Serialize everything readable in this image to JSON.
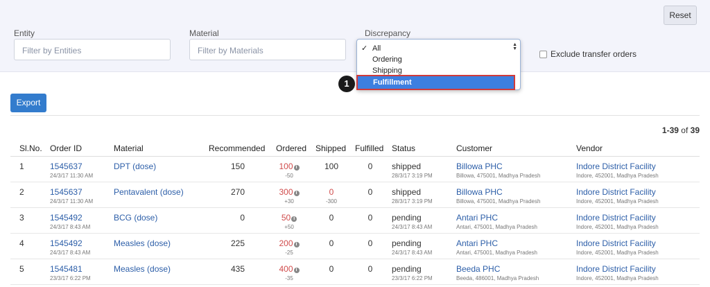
{
  "filters": {
    "reset_label": "Reset",
    "entity_label": "Entity",
    "entity_placeholder": "Filter by Entities",
    "material_label": "Material",
    "material_placeholder": "Filter by Materials",
    "discrepancy_label": "Discrepancy",
    "discrepancy_options": [
      "All",
      "Ordering",
      "Shipping",
      "Fulfillment"
    ],
    "discrepancy_checked": "All",
    "discrepancy_highlighted": "Fulfillment",
    "exclude_label": "Exclude transfer orders"
  },
  "step_marker": "1",
  "export_label": "Export",
  "pager": {
    "range": "1-39",
    "of": "of",
    "total": "39"
  },
  "table": {
    "headers": [
      "Sl.No.",
      "Order ID",
      "Material",
      "Recommended",
      "Ordered",
      "Shipped",
      "Fulfilled",
      "Status",
      "Customer",
      "Vendor"
    ],
    "rows": [
      {
        "sl": "1",
        "order_id": "1545637",
        "order_date": "24/3/17 11:30 AM",
        "material": "DPT (dose)",
        "recommended": "150",
        "ordered": "100",
        "ordered_diff": "-50",
        "shipped": "100",
        "shipped_diff": "",
        "fulfilled": "0",
        "status": "shipped",
        "status_date": "28/3/17 3:19 PM",
        "customer": "Billowa PHC",
        "customer_addr": "Billowa, 475001, Madhya Pradesh",
        "vendor": "Indore District Facility",
        "vendor_addr": "Indore, 452001, Madhya Pradesh"
      },
      {
        "sl": "2",
        "order_id": "1545637",
        "order_date": "24/3/17 11:30 AM",
        "material": "Pentavalent (dose)",
        "recommended": "270",
        "ordered": "300",
        "ordered_diff": "+30",
        "shipped": "0",
        "shipped_diff": "-300",
        "fulfilled": "0",
        "status": "shipped",
        "status_date": "28/3/17 3:19 PM",
        "customer": "Billowa PHC",
        "customer_addr": "Billowa, 475001, Madhya Pradesh",
        "vendor": "Indore District Facility",
        "vendor_addr": "Indore, 452001, Madhya Pradesh"
      },
      {
        "sl": "3",
        "order_id": "1545492",
        "order_date": "24/3/17 8:43 AM",
        "material": "BCG (dose)",
        "recommended": "0",
        "ordered": "50",
        "ordered_diff": "+50",
        "shipped": "0",
        "shipped_diff": "",
        "fulfilled": "0",
        "status": "pending",
        "status_date": "24/3/17 8:43 AM",
        "customer": "Antari PHC",
        "customer_addr": "Antari, 475001, Madhya Pradesh",
        "vendor": "Indore District Facility",
        "vendor_addr": "Indore, 452001, Madhya Pradesh"
      },
      {
        "sl": "4",
        "order_id": "1545492",
        "order_date": "24/3/17 8:43 AM",
        "material": "Measles (dose)",
        "recommended": "225",
        "ordered": "200",
        "ordered_diff": "-25",
        "shipped": "0",
        "shipped_diff": "",
        "fulfilled": "0",
        "status": "pending",
        "status_date": "24/3/17 8:43 AM",
        "customer": "Antari PHC",
        "customer_addr": "Antari, 475001, Madhya Pradesh",
        "vendor": "Indore District Facility",
        "vendor_addr": "Indore, 452001, Madhya Pradesh"
      },
      {
        "sl": "5",
        "order_id": "1545481",
        "order_date": "23/3/17 6:22 PM",
        "material": "Measles (dose)",
        "recommended": "435",
        "ordered": "400",
        "ordered_diff": "-35",
        "shipped": "0",
        "shipped_diff": "",
        "fulfilled": "0",
        "status": "pending",
        "status_date": "23/3/17 6:22 PM",
        "customer": "Beeda PHC",
        "customer_addr": "Beeda, 486001, Madhya Pradesh",
        "vendor": "Indore District Facility",
        "vendor_addr": "Indore, 452001, Madhya Pradesh"
      }
    ]
  }
}
